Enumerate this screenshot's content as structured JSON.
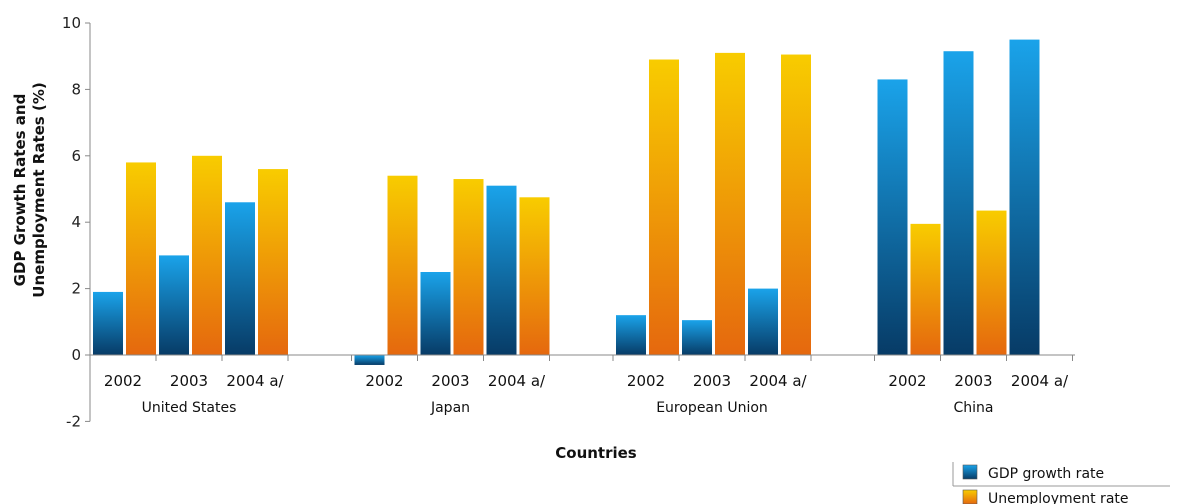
{
  "chart_data": {
    "type": "bar",
    "title": "",
    "ylabel_line1": "GDP Growth Rates and",
    "ylabel_line2": "Unemployment Rates (%)",
    "xlabel": "Countries",
    "ylim": [
      -2,
      10
    ],
    "yticks": [
      -2,
      0,
      2,
      4,
      6,
      8,
      10
    ],
    "groups": [
      "United States",
      "Japan",
      "European Union",
      "China"
    ],
    "years": [
      "2002",
      "2003",
      "2004 a/"
    ],
    "series": [
      {
        "name": "GDP growth rate",
        "color_top": "#1aa3ea",
        "color_bottom": "#073b66",
        "values": [
          [
            1.9,
            3.0,
            4.6
          ],
          [
            -0.3,
            2.5,
            5.1
          ],
          [
            1.2,
            1.05,
            2.0
          ],
          [
            8.3,
            9.15,
            9.5
          ]
        ]
      },
      {
        "name": "Unemployment rate",
        "color_top": "#f8cc00",
        "color_bottom": "#e5680e",
        "values": [
          [
            5.8,
            6.0,
            5.6
          ],
          [
            5.4,
            5.3,
            4.75
          ],
          [
            8.9,
            9.1,
            9.05
          ],
          [
            3.95,
            4.35,
            null
          ]
        ]
      }
    ],
    "grid": false,
    "legend_position": "bottom-right"
  }
}
